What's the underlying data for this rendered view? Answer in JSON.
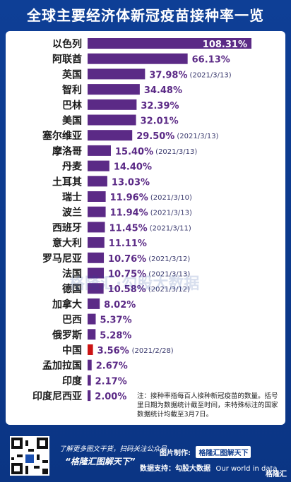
{
  "title": "全球主要经济体新冠疫苗接种率一览",
  "chart_data": {
    "type": "bar",
    "orientation": "horizontal",
    "categories": [
      "以色列",
      "阿联酋",
      "英国",
      "智利",
      "巴林",
      "美国",
      "塞尔维亚",
      "摩洛哥",
      "丹麦",
      "土耳其",
      "瑞士",
      "波兰",
      "西班牙",
      "意大利",
      "罗马尼亚",
      "法国",
      "德国",
      "加拿大",
      "巴西",
      "俄罗斯",
      "中国",
      "孟加拉国",
      "印度",
      "印度尼西亚"
    ],
    "values": [
      108.31,
      66.13,
      37.98,
      34.48,
      32.39,
      32.01,
      29.5,
      15.4,
      14.4,
      13.03,
      11.96,
      11.94,
      11.45,
      11.11,
      10.76,
      10.75,
      10.58,
      8.02,
      5.37,
      5.28,
      3.56,
      2.67,
      2.17,
      2.0
    ],
    "value_labels": [
      "108.31%",
      "66.13%",
      "37.98%",
      "34.48%",
      "32.39%",
      "32.01%",
      "29.50%",
      "15.40%",
      "14.40%",
      "13.03%",
      "11.96%",
      "11.94%",
      "11.45%",
      "11.11%",
      "10.76%",
      "10.75%",
      "10.58%",
      "8.02%",
      "5.37%",
      "5.28%",
      "3.56%",
      "2.67%",
      "2.17%",
      "2.00%"
    ],
    "date_notes": [
      "",
      "",
      "(2021/3/13)",
      "",
      "",
      "",
      "(2021/3/13)",
      "(2021/3/13)",
      "",
      "",
      "(2021/3/10)",
      "(2021/3/13)",
      "(2021/3/11)",
      "",
      "(2021/3/12)",
      "(2021/3/13)",
      "(2021/3/12)",
      "",
      "",
      "",
      "(2021/2/28)",
      "",
      "",
      ""
    ],
    "highlight_category": "中国",
    "colors": {
      "bar": "#5b2a86",
      "highlight": "#cc1414",
      "value_text": "#5b2a86",
      "date_text": "#3a3a6e"
    }
  },
  "watermark": "格隆汇·勾股大数据",
  "note": "注：接种率指每百人接种新冠疫苗的数量。括号里日期为数据统计截至时间，未特殊标注的国家数据统计均截至3月7日。",
  "footer": {
    "qr_icon": "qr-code-icon",
    "line1": "了解更多图文干货，扫码关注公众号",
    "line2": "“格隆汇图解天下”",
    "maker_label": "图片制作:",
    "maker_name": "格隆汇图解天下",
    "support_label": "数据支持：勾股大数据",
    "support_name": "Our world in data",
    "logo": "格隆汇"
  }
}
